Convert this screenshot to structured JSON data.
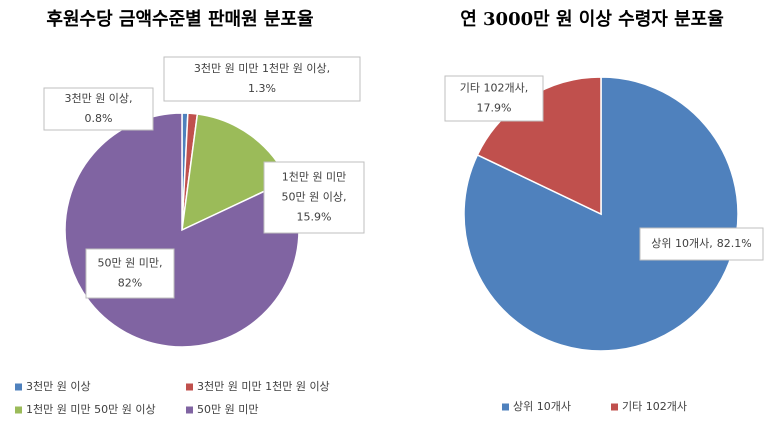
{
  "chart_data": [
    {
      "type": "pie",
      "title": "후원수당 금액수준별 판매원 분포율",
      "categories": [
        "3천만 원 이상",
        "3천만 원 미만 1천만 원 이상",
        "1천만 원 미만 50만 원 이상",
        "50만 원 미만"
      ],
      "values": [
        0.8,
        1.3,
        15.9,
        82
      ],
      "value_labels": [
        "0.8%",
        "1.3%",
        "15.9%",
        "82%"
      ],
      "data_labels": [
        [
          "3천만 원 이상,"
        ],
        [
          "3천만 원 미만 1천만 원 이상,"
        ],
        [
          "1천만 원 미만",
          "50만 원 이상,"
        ],
        [
          "50만 원 미만,"
        ]
      ],
      "colors": [
        "#4f81bd",
        "#c0504d",
        "#9bbb59",
        "#8064a2"
      ]
    },
    {
      "type": "pie",
      "title": "연 3000만 원 이상 수령자 분포율",
      "categories": [
        "상위 10개사",
        "기타 102개사"
      ],
      "values": [
        82.1,
        17.9
      ],
      "value_labels": [
        "82.1%",
        "17.9%"
      ],
      "data_labels": [
        [
          "상위 10개사,"
        ],
        [
          "기타 102개사,"
        ]
      ],
      "colors": [
        "#4f81bd",
        "#c0504d"
      ]
    }
  ]
}
